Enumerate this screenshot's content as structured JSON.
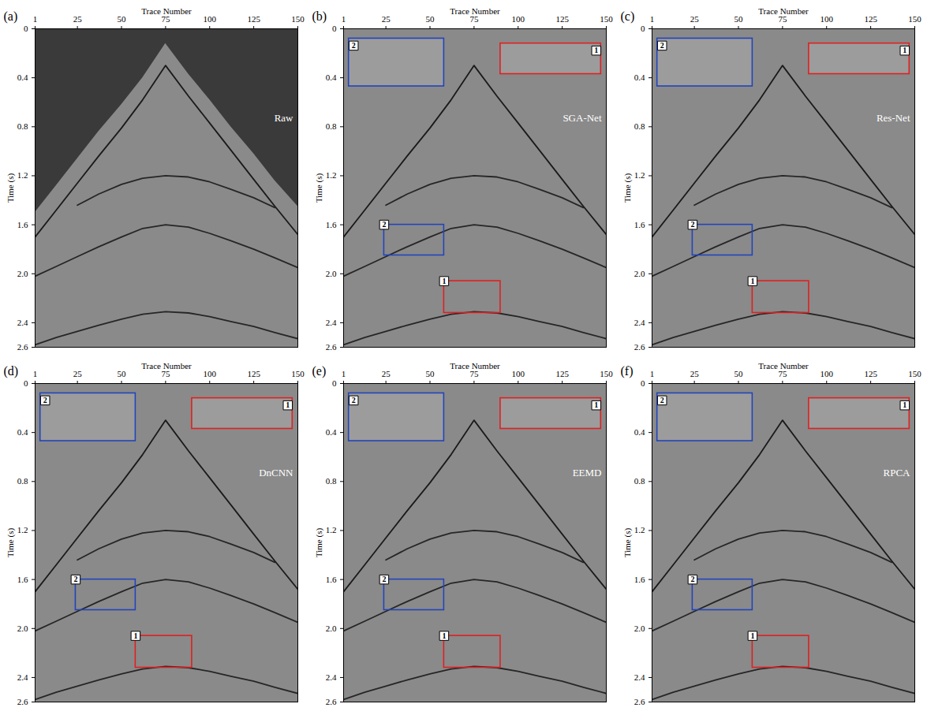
{
  "chart_data": [
    {
      "type": "line",
      "panel": "(a)",
      "title": "Raw",
      "xlabel": "Trace Number",
      "ylabel": "Time (s)",
      "xlim": [
        1,
        150
      ],
      "ylim": [
        2.6,
        0
      ],
      "xticks": [
        1,
        25,
        50,
        75,
        100,
        125,
        150
      ],
      "yticks": [
        0,
        0.4,
        0.8,
        1.2,
        1.6,
        {
          "value": 2,
          "label": "2.0"
        },
        2.4,
        2.6
      ],
      "x": [
        1,
        13,
        25,
        37,
        50,
        62,
        75,
        88,
        100,
        112,
        125,
        137,
        150
      ],
      "series": [
        {
          "type": "area",
          "color": "#3a3a3a",
          "values": [
            1.5,
            1.28,
            1.06,
            0.84,
            0.62,
            0.4,
            0.12,
            0.37,
            0.58,
            0.8,
            1.02,
            1.24,
            1.45
          ]
        },
        {
          "type": "line",
          "color": "#1a1a1a",
          "values": [
            1.7,
            1.48,
            1.26,
            1.04,
            0.81,
            0.58,
            0.3,
            0.55,
            0.77,
            0.99,
            1.23,
            1.45,
            1.68
          ]
        },
        {
          "type": "line",
          "color": "#262626",
          "values": [
            null,
            null,
            1.44,
            1.35,
            1.27,
            1.22,
            1.2,
            1.21,
            1.25,
            1.31,
            1.38,
            1.46,
            null
          ]
        },
        {
          "type": "line",
          "color": "#262626",
          "values": [
            2.02,
            1.94,
            1.86,
            1.78,
            1.7,
            1.63,
            1.6,
            1.62,
            1.67,
            1.73,
            1.8,
            1.87,
            1.95
          ]
        },
        {
          "type": "line",
          "color": "#262626",
          "values": [
            2.58,
            2.52,
            2.47,
            2.42,
            2.37,
            2.33,
            2.31,
            2.32,
            2.35,
            2.39,
            2.43,
            2.48,
            2.53
          ]
        }
      ],
      "annotations": []
    },
    {
      "type": "line",
      "panel": "(b)",
      "title": "SGA-Net",
      "xlabel": "Trace Number",
      "ylabel": "Time (s)",
      "xlim": [
        1,
        150
      ],
      "ylim": [
        2.6,
        0
      ],
      "xticks": [
        1,
        25,
        50,
        75,
        100,
        125,
        150
      ],
      "yticks": [
        0,
        0.4,
        0.8,
        1.2,
        1.6,
        {
          "value": 2,
          "label": "2.0"
        },
        2.4,
        2.6
      ],
      "x": [
        1,
        13,
        25,
        37,
        50,
        62,
        75,
        88,
        100,
        112,
        125,
        137,
        150
      ],
      "series": [
        {
          "type": "line",
          "color": "#1a1a1a",
          "values": [
            1.7,
            1.48,
            1.26,
            1.04,
            0.81,
            0.58,
            0.3,
            0.55,
            0.77,
            0.99,
            1.23,
            1.45,
            1.68
          ]
        },
        {
          "type": "line",
          "color": "#262626",
          "values": [
            null,
            null,
            1.44,
            1.35,
            1.27,
            1.22,
            1.2,
            1.21,
            1.25,
            1.31,
            1.38,
            1.46,
            null
          ]
        },
        {
          "type": "line",
          "color": "#262626",
          "values": [
            2.02,
            1.94,
            1.86,
            1.78,
            1.7,
            1.63,
            1.6,
            1.62,
            1.67,
            1.73,
            1.8,
            1.87,
            1.95
          ]
        },
        {
          "type": "line",
          "color": "#262626",
          "values": [
            2.58,
            2.52,
            2.47,
            2.42,
            2.37,
            2.33,
            2.31,
            2.32,
            2.35,
            2.39,
            2.43,
            2.48,
            2.53
          ]
        }
      ],
      "annotations": [
        {
          "label": "1",
          "color": "#e02020",
          "x": [
            58,
            90
          ],
          "y": [
            2.06,
            2.32
          ],
          "inset_x": [
            90,
            147
          ],
          "inset_y": [
            0.12,
            0.37
          ]
        },
        {
          "label": "2",
          "color": "#2244bb",
          "x": [
            24,
            58
          ],
          "y": [
            1.6,
            1.85
          ],
          "inset_x": [
            4,
            58
          ],
          "inset_y": [
            0.08,
            0.47
          ]
        }
      ]
    },
    {
      "type": "line",
      "panel": "(c)",
      "title": "Res-Net",
      "xlabel": "Trace Number",
      "ylabel": "Time (s)",
      "xlim": [
        1,
        150
      ],
      "ylim": [
        2.6,
        0
      ],
      "xticks": [
        1,
        25,
        50,
        75,
        100,
        125,
        150
      ],
      "yticks": [
        0,
        0.4,
        0.8,
        1.2,
        1.6,
        {
          "value": 2,
          "label": "2.0"
        },
        2.4,
        2.6
      ],
      "x": [
        1,
        13,
        25,
        37,
        50,
        62,
        75,
        88,
        100,
        112,
        125,
        137,
        150
      ],
      "series": [
        {
          "type": "line",
          "color": "#1a1a1a",
          "values": [
            1.7,
            1.48,
            1.26,
            1.04,
            0.81,
            0.58,
            0.3,
            0.55,
            0.77,
            0.99,
            1.23,
            1.45,
            1.68
          ]
        },
        {
          "type": "line",
          "color": "#262626",
          "values": [
            null,
            null,
            1.44,
            1.35,
            1.27,
            1.22,
            1.2,
            1.21,
            1.25,
            1.31,
            1.38,
            1.46,
            null
          ]
        },
        {
          "type": "line",
          "color": "#262626",
          "values": [
            2.02,
            1.94,
            1.86,
            1.78,
            1.7,
            1.63,
            1.6,
            1.62,
            1.67,
            1.73,
            1.8,
            1.87,
            1.95
          ]
        },
        {
          "type": "line",
          "color": "#262626",
          "values": [
            2.58,
            2.52,
            2.47,
            2.42,
            2.37,
            2.33,
            2.31,
            2.32,
            2.35,
            2.39,
            2.43,
            2.48,
            2.53
          ]
        }
      ],
      "annotations": [
        {
          "label": "1",
          "color": "#e02020",
          "x": [
            58,
            90
          ],
          "y": [
            2.06,
            2.32
          ],
          "inset_x": [
            90,
            147
          ],
          "inset_y": [
            0.12,
            0.37
          ]
        },
        {
          "label": "2",
          "color": "#2244bb",
          "x": [
            24,
            58
          ],
          "y": [
            1.6,
            1.85
          ],
          "inset_x": [
            4,
            58
          ],
          "inset_y": [
            0.08,
            0.47
          ]
        }
      ]
    },
    {
      "type": "line",
      "panel": "(d)",
      "title": "DnCNN",
      "xlabel": "Trace Number",
      "ylabel": "Time (s)",
      "xlim": [
        1,
        150
      ],
      "ylim": [
        2.6,
        0
      ],
      "xticks": [
        1,
        25,
        50,
        75,
        100,
        125,
        150
      ],
      "yticks": [
        0,
        0.4,
        0.8,
        1.2,
        1.6,
        {
          "value": 2,
          "label": "2.0"
        },
        2.4,
        2.6
      ],
      "x": [
        1,
        13,
        25,
        37,
        50,
        62,
        75,
        88,
        100,
        112,
        125,
        137,
        150
      ],
      "series": [
        {
          "type": "line",
          "color": "#1a1a1a",
          "values": [
            1.7,
            1.48,
            1.26,
            1.04,
            0.81,
            0.58,
            0.3,
            0.55,
            0.77,
            0.99,
            1.23,
            1.45,
            1.68
          ]
        },
        {
          "type": "line",
          "color": "#262626",
          "values": [
            null,
            null,
            1.44,
            1.35,
            1.27,
            1.22,
            1.2,
            1.21,
            1.25,
            1.31,
            1.38,
            1.46,
            null
          ]
        },
        {
          "type": "line",
          "color": "#262626",
          "values": [
            2.02,
            1.94,
            1.86,
            1.78,
            1.7,
            1.63,
            1.6,
            1.62,
            1.67,
            1.73,
            1.8,
            1.87,
            1.95
          ]
        },
        {
          "type": "line",
          "color": "#262626",
          "values": [
            2.58,
            2.52,
            2.47,
            2.42,
            2.37,
            2.33,
            2.31,
            2.32,
            2.35,
            2.39,
            2.43,
            2.48,
            2.53
          ]
        }
      ],
      "annotations": [
        {
          "label": "1",
          "color": "#e02020",
          "x": [
            58,
            90
          ],
          "y": [
            2.06,
            2.32
          ],
          "inset_x": [
            90,
            147
          ],
          "inset_y": [
            0.12,
            0.37
          ]
        },
        {
          "label": "2",
          "color": "#2244bb",
          "x": [
            24,
            58
          ],
          "y": [
            1.6,
            1.85
          ],
          "inset_x": [
            4,
            58
          ],
          "inset_y": [
            0.08,
            0.47
          ]
        }
      ]
    },
    {
      "type": "line",
      "panel": "(e)",
      "title": "EEMD",
      "xlabel": "Trace Number",
      "ylabel": "Time (s)",
      "xlim": [
        1,
        150
      ],
      "ylim": [
        2.6,
        0
      ],
      "xticks": [
        1,
        25,
        50,
        75,
        100,
        125,
        150
      ],
      "yticks": [
        0,
        0.4,
        0.8,
        1.2,
        1.6,
        {
          "value": 2,
          "label": "2.0"
        },
        2.4,
        2.6
      ],
      "x": [
        1,
        13,
        25,
        37,
        50,
        62,
        75,
        88,
        100,
        112,
        125,
        137,
        150
      ],
      "series": [
        {
          "type": "line",
          "color": "#1a1a1a",
          "values": [
            1.7,
            1.48,
            1.26,
            1.04,
            0.81,
            0.58,
            0.3,
            0.55,
            0.77,
            0.99,
            1.23,
            1.45,
            1.68
          ]
        },
        {
          "type": "line",
          "color": "#262626",
          "values": [
            null,
            null,
            1.44,
            1.35,
            1.27,
            1.22,
            1.2,
            1.21,
            1.25,
            1.31,
            1.38,
            1.46,
            null
          ]
        },
        {
          "type": "line",
          "color": "#262626",
          "values": [
            2.02,
            1.94,
            1.86,
            1.78,
            1.7,
            1.63,
            1.6,
            1.62,
            1.67,
            1.73,
            1.8,
            1.87,
            1.95
          ]
        },
        {
          "type": "line",
          "color": "#262626",
          "values": [
            2.58,
            2.52,
            2.47,
            2.42,
            2.37,
            2.33,
            2.31,
            2.32,
            2.35,
            2.39,
            2.43,
            2.48,
            2.53
          ]
        }
      ],
      "annotations": [
        {
          "label": "1",
          "color": "#e02020",
          "x": [
            58,
            90
          ],
          "y": [
            2.06,
            2.32
          ],
          "inset_x": [
            90,
            147
          ],
          "inset_y": [
            0.12,
            0.37
          ]
        },
        {
          "label": "2",
          "color": "#2244bb",
          "x": [
            24,
            58
          ],
          "y": [
            1.6,
            1.85
          ],
          "inset_x": [
            4,
            58
          ],
          "inset_y": [
            0.08,
            0.47
          ]
        }
      ]
    },
    {
      "type": "line",
      "panel": "(f)",
      "title": "RPCA",
      "xlabel": "Trace Number",
      "ylabel": "Time (s)",
      "xlim": [
        1,
        150
      ],
      "ylim": [
        2.6,
        0
      ],
      "xticks": [
        1,
        25,
        50,
        75,
        100,
        125,
        150
      ],
      "yticks": [
        0,
        0.4,
        0.8,
        1.2,
        1.6,
        {
          "value": 2,
          "label": "2.0"
        },
        2.4,
        2.6
      ],
      "x": [
        1,
        13,
        25,
        37,
        50,
        62,
        75,
        88,
        100,
        112,
        125,
        137,
        150
      ],
      "series": [
        {
          "type": "line",
          "color": "#1a1a1a",
          "values": [
            1.7,
            1.48,
            1.26,
            1.04,
            0.81,
            0.58,
            0.3,
            0.55,
            0.77,
            0.99,
            1.23,
            1.45,
            1.68
          ]
        },
        {
          "type": "line",
          "color": "#262626",
          "values": [
            null,
            null,
            1.44,
            1.35,
            1.27,
            1.22,
            1.2,
            1.21,
            1.25,
            1.31,
            1.38,
            1.46,
            null
          ]
        },
        {
          "type": "line",
          "color": "#262626",
          "values": [
            2.02,
            1.94,
            1.86,
            1.78,
            1.7,
            1.63,
            1.6,
            1.62,
            1.67,
            1.73,
            1.8,
            1.87,
            1.95
          ]
        },
        {
          "type": "line",
          "color": "#262626",
          "values": [
            2.58,
            2.52,
            2.47,
            2.42,
            2.37,
            2.33,
            2.31,
            2.32,
            2.35,
            2.39,
            2.43,
            2.48,
            2.53
          ]
        }
      ],
      "annotations": [
        {
          "label": "1",
          "color": "#e02020",
          "x": [
            58,
            90
          ],
          "y": [
            2.06,
            2.32
          ],
          "inset_x": [
            90,
            147
          ],
          "inset_y": [
            0.12,
            0.37
          ]
        },
        {
          "label": "2",
          "color": "#2244bb",
          "x": [
            24,
            58
          ],
          "y": [
            1.6,
            1.85
          ],
          "inset_x": [
            4,
            58
          ],
          "inset_y": [
            0.08,
            0.47
          ]
        }
      ]
    }
  ]
}
